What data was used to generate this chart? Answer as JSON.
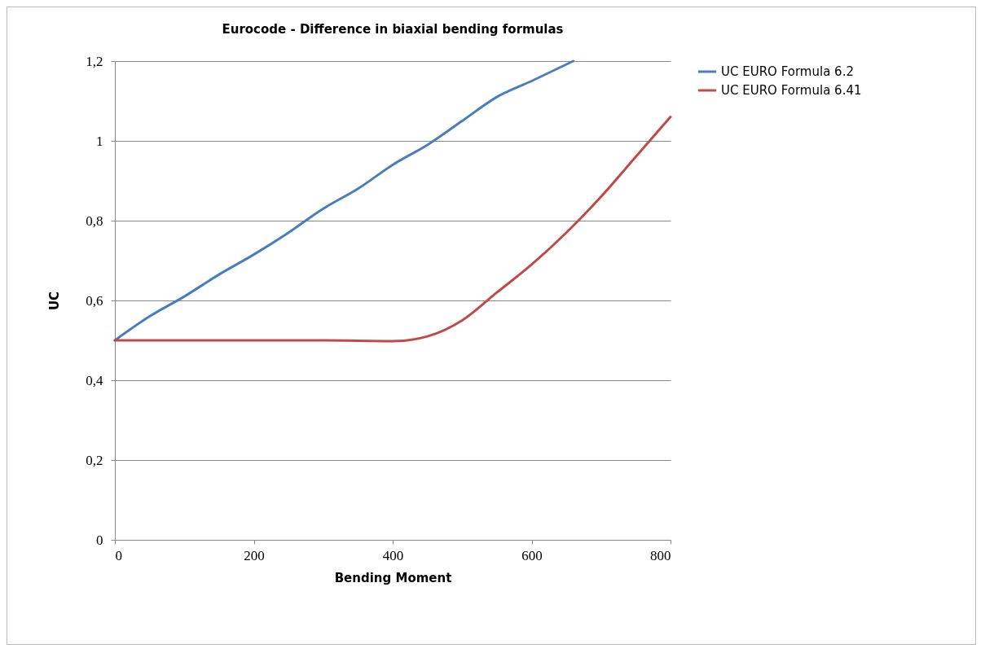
{
  "chart_data": {
    "type": "line",
    "title": "Eurocode - Difference in biaxial bending formulas",
    "xlabel": "Bending Moment",
    "ylabel": "UC",
    "series": [
      {
        "name": "UC EURO Formula 6.2",
        "color": "#4a7ebb",
        "x": [
          0,
          50,
          100,
          150,
          200,
          250,
          300,
          350,
          400,
          450,
          500,
          550,
          600,
          660
        ],
        "values": [
          0.5,
          0.56,
          0.61,
          0.665,
          0.715,
          0.77,
          0.83,
          0.88,
          0.94,
          0.99,
          1.05,
          1.11,
          1.15,
          1.2
        ]
      },
      {
        "name": "UC EURO Formula 6.41",
        "color": "#be4b48",
        "x": [
          0,
          100,
          200,
          300,
          400,
          450,
          500,
          550,
          600,
          650,
          700,
          750,
          800
        ],
        "values": [
          0.5,
          0.5,
          0.5,
          0.5,
          0.498,
          0.51,
          0.55,
          0.62,
          0.69,
          0.77,
          0.86,
          0.96,
          1.06
        ]
      }
    ],
    "xlim": [
      0,
      800
    ],
    "xticks": [
      0,
      200,
      400,
      600,
      800
    ],
    "ylim": [
      0,
      1.2
    ],
    "yticks": [
      0,
      {
        "value": 0.2,
        "label": "0,2"
      },
      {
        "value": 0.4,
        "label": "0,4"
      },
      {
        "value": 0.6,
        "label": "0,6"
      },
      {
        "value": 0.8,
        "label": "0,8"
      },
      1,
      {
        "value": 1.2,
        "label": "1,2"
      }
    ],
    "grid": "y",
    "legend": "right",
    "line_style": "solid",
    "marker": "none"
  }
}
